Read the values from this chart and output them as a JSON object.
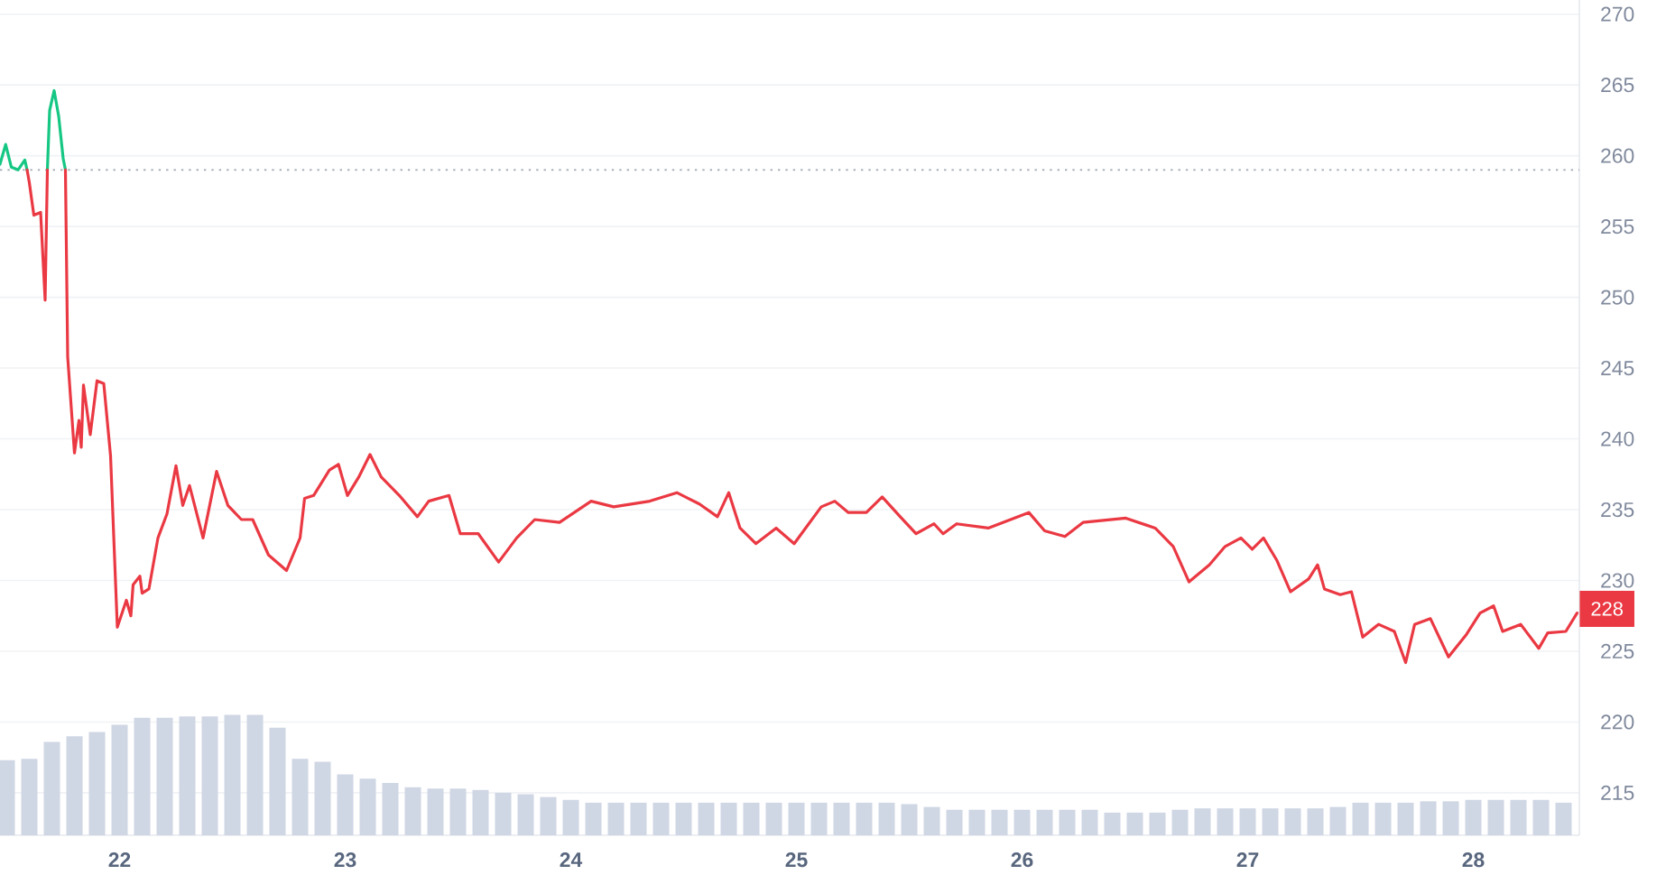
{
  "chart_data": {
    "type": "line",
    "xlim": [
      21.47,
      28.47
    ],
    "ylim": [
      212,
      271
    ],
    "xticks": [
      22,
      23,
      24,
      25,
      26,
      27,
      28
    ],
    "yticks": [
      215,
      220,
      225,
      230,
      235,
      240,
      245,
      250,
      255,
      260,
      265,
      270
    ],
    "grid": "y",
    "ref_lines": [
      {
        "axis": "y",
        "value": 259,
        "color": "#a0a6b1",
        "line_style": "dotted"
      }
    ],
    "annotations": [
      {
        "text": "228",
        "x": 28.47,
        "y": 228
      }
    ],
    "series": [
      {
        "type": "bar",
        "color": "#cfd6e4",
        "x": [
          21.5,
          21.6,
          21.7,
          21.8,
          21.9,
          22.0,
          22.1,
          22.2,
          22.3,
          22.4,
          22.5,
          22.6,
          22.7,
          22.8,
          22.9,
          23.0,
          23.1,
          23.2,
          23.3,
          23.4,
          23.5,
          23.6,
          23.7,
          23.8,
          23.9,
          24.0,
          24.1,
          24.2,
          24.3,
          24.4,
          24.5,
          24.6,
          24.7,
          24.8,
          24.9,
          25.0,
          25.1,
          25.2,
          25.3,
          25.4,
          25.5,
          25.6,
          25.7,
          25.8,
          25.9,
          26.0,
          26.1,
          26.2,
          26.3,
          26.4,
          26.5,
          26.6,
          26.7,
          26.8,
          26.9,
          27.0,
          27.1,
          27.2,
          27.3,
          27.4,
          27.5,
          27.6,
          27.7,
          27.8,
          27.9,
          28.0,
          28.1,
          28.2,
          28.3,
          28.4
        ],
        "values": [
          217.3,
          217.4,
          218.6,
          219.0,
          219.3,
          219.8,
          220.3,
          220.3,
          220.4,
          220.4,
          220.5,
          220.5,
          219.6,
          217.4,
          217.2,
          216.3,
          216.0,
          215.7,
          215.4,
          215.3,
          215.3,
          215.2,
          215.0,
          214.9,
          214.7,
          214.5,
          214.3,
          214.3,
          214.3,
          214.3,
          214.3,
          214.3,
          214.3,
          214.3,
          214.3,
          214.3,
          214.3,
          214.3,
          214.3,
          214.3,
          214.2,
          214.0,
          213.8,
          213.8,
          213.8,
          213.8,
          213.8,
          213.8,
          213.8,
          213.6,
          213.6,
          213.6,
          213.8,
          213.9,
          213.9,
          213.9,
          213.9,
          213.9,
          213.9,
          214.0,
          214.3,
          214.3,
          214.3,
          214.4,
          214.4,
          214.5,
          214.5,
          214.5,
          214.5,
          214.3
        ]
      },
      {
        "type": "line",
        "color": "#16c784",
        "x": [
          21.47,
          21.495,
          21.52,
          21.55,
          21.58,
          21.59,
          21.635,
          21.68,
          21.69,
          21.71,
          21.73,
          21.75,
          21.76
        ],
        "values": [
          259.4,
          260.8,
          259.2,
          259.0,
          259.7,
          259.0,
          null,
          259.0,
          263.2,
          264.6,
          262.8,
          259.8,
          259.0
        ]
      },
      {
        "type": "line",
        "color": "#ea3943",
        "x": [
          21.59,
          21.6,
          21.62,
          21.65,
          21.67,
          21.68,
          21.72,
          21.76,
          21.77,
          21.8,
          21.82,
          21.83,
          21.84,
          21.87,
          21.9,
          21.93,
          21.96,
          21.99,
          22.03,
          22.05,
          22.06,
          22.09,
          22.1,
          22.13,
          22.17,
          22.21,
          22.25,
          22.28,
          22.31,
          22.37,
          22.43,
          22.48,
          22.54,
          22.59,
          22.66,
          22.74,
          22.8,
          22.82,
          22.86,
          22.93,
          22.97,
          23.01,
          23.06,
          23.11,
          23.16,
          23.24,
          23.32,
          23.37,
          23.46,
          23.51,
          23.59,
          23.68,
          23.76,
          23.84,
          23.95,
          24.09,
          24.19,
          24.35,
          24.47,
          24.57,
          24.65,
          24.7,
          24.75,
          24.82,
          24.91,
          24.99,
          25.05,
          25.11,
          25.17,
          25.23,
          25.31,
          25.38,
          25.46,
          25.53,
          25.61,
          25.65,
          25.71,
          25.85,
          26.03,
          26.1,
          26.19,
          26.27,
          26.46,
          26.59,
          26.67,
          26.74,
          26.83,
          26.9,
          26.97,
          27.02,
          27.07,
          27.13,
          27.19,
          27.27,
          27.31,
          27.34,
          27.41,
          27.46,
          27.51,
          27.58,
          27.65,
          27.7,
          27.74,
          27.81,
          27.89,
          27.97,
          28.03,
          28.09,
          28.13,
          28.21,
          28.29,
          28.33,
          28.41,
          28.46
        ],
        "values": [
          259.0,
          258.1,
          255.8,
          256.0,
          249.8,
          259.0,
          null,
          259.0,
          245.8,
          239.0,
          241.3,
          239.4,
          243.8,
          240.3,
          244.1,
          243.9,
          238.8,
          226.7,
          228.6,
          227.5,
          229.7,
          230.3,
          229.1,
          229.4,
          233.0,
          234.7,
          238.1,
          235.3,
          236.7,
          233.0,
          237.7,
          235.3,
          234.3,
          234.3,
          231.8,
          230.7,
          233.0,
          235.8,
          236.0,
          237.8,
          238.2,
          236.0,
          237.3,
          238.9,
          237.3,
          236.0,
          234.5,
          235.6,
          236.0,
          233.3,
          233.3,
          231.3,
          233.0,
          234.3,
          234.1,
          235.6,
          235.2,
          235.6,
          236.2,
          235.4,
          234.5,
          236.2,
          233.7,
          232.6,
          233.7,
          232.6,
          233.9,
          235.2,
          235.6,
          234.8,
          234.8,
          235.9,
          234.5,
          233.3,
          234.0,
          233.3,
          234.0,
          233.7,
          234.8,
          233.5,
          233.1,
          234.1,
          234.4,
          233.7,
          232.4,
          229.9,
          231.1,
          232.4,
          233.0,
          232.2,
          233.0,
          231.4,
          229.2,
          230.1,
          231.1,
          229.4,
          229.0,
          229.2,
          226.0,
          226.9,
          226.4,
          224.2,
          226.9,
          227.3,
          224.6,
          226.2,
          227.7,
          228.2,
          226.4,
          226.9,
          225.2,
          226.3,
          226.4,
          227.7
        ]
      }
    ]
  }
}
